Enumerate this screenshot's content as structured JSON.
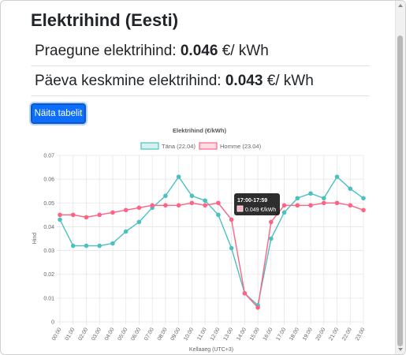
{
  "page": {
    "title": "Elektrihind (Eesti)",
    "current_label": "Praegune elektrihind:",
    "current_value": "0.046",
    "current_unit": "€/ kWh",
    "average_label": "Päeva keskmine elektrihind:",
    "average_value": "0.043",
    "average_unit": "€/ kWh",
    "show_table_button": "Näita tabelit"
  },
  "tooltip": {
    "title": "17:00-17:59",
    "value": "0.049 €/kWh"
  },
  "chart_data": {
    "type": "line",
    "title": "Elektrihind (€/kWh)",
    "xlabel": "Kellaaeg (UTC+3)",
    "ylabel": "Hind",
    "ylim": [
      0,
      0.07
    ],
    "yticks": [
      "0",
      "0.01",
      "0.02",
      "0.03",
      "0.04",
      "0.05",
      "0.06",
      "0.07"
    ],
    "grid": true,
    "legend_position": "top",
    "categories": [
      "00:00",
      "01:00",
      "02:00",
      "03:00",
      "04:00",
      "05:00",
      "06:00",
      "07:00",
      "08:00",
      "09:00",
      "10:00",
      "11:00",
      "12:00",
      "13:00",
      "14:00",
      "15:00",
      "16:00",
      "17:00",
      "18:00",
      "19:00",
      "20:00",
      "21:00",
      "22:00",
      "23:00"
    ],
    "series": [
      {
        "name": "Täna (22.04)",
        "color": "#4bc0c0",
        "values": [
          0.043,
          0.032,
          0.032,
          0.032,
          0.033,
          0.038,
          0.042,
          0.048,
          0.053,
          0.061,
          0.053,
          0.051,
          0.045,
          0.031,
          0.012,
          0.007,
          0.035,
          0.046,
          0.052,
          0.054,
          0.052,
          0.061,
          0.056,
          0.052
        ]
      },
      {
        "name": "Homme (23.04)",
        "color": "#ff6384",
        "values": [
          0.045,
          0.045,
          0.044,
          0.045,
          0.046,
          0.047,
          0.048,
          0.049,
          0.049,
          0.049,
          0.05,
          0.049,
          0.05,
          0.043,
          0.012,
          0.006,
          0.042,
          0.049,
          0.049,
          0.049,
          0.05,
          0.05,
          0.049,
          0.047
        ]
      }
    ]
  }
}
